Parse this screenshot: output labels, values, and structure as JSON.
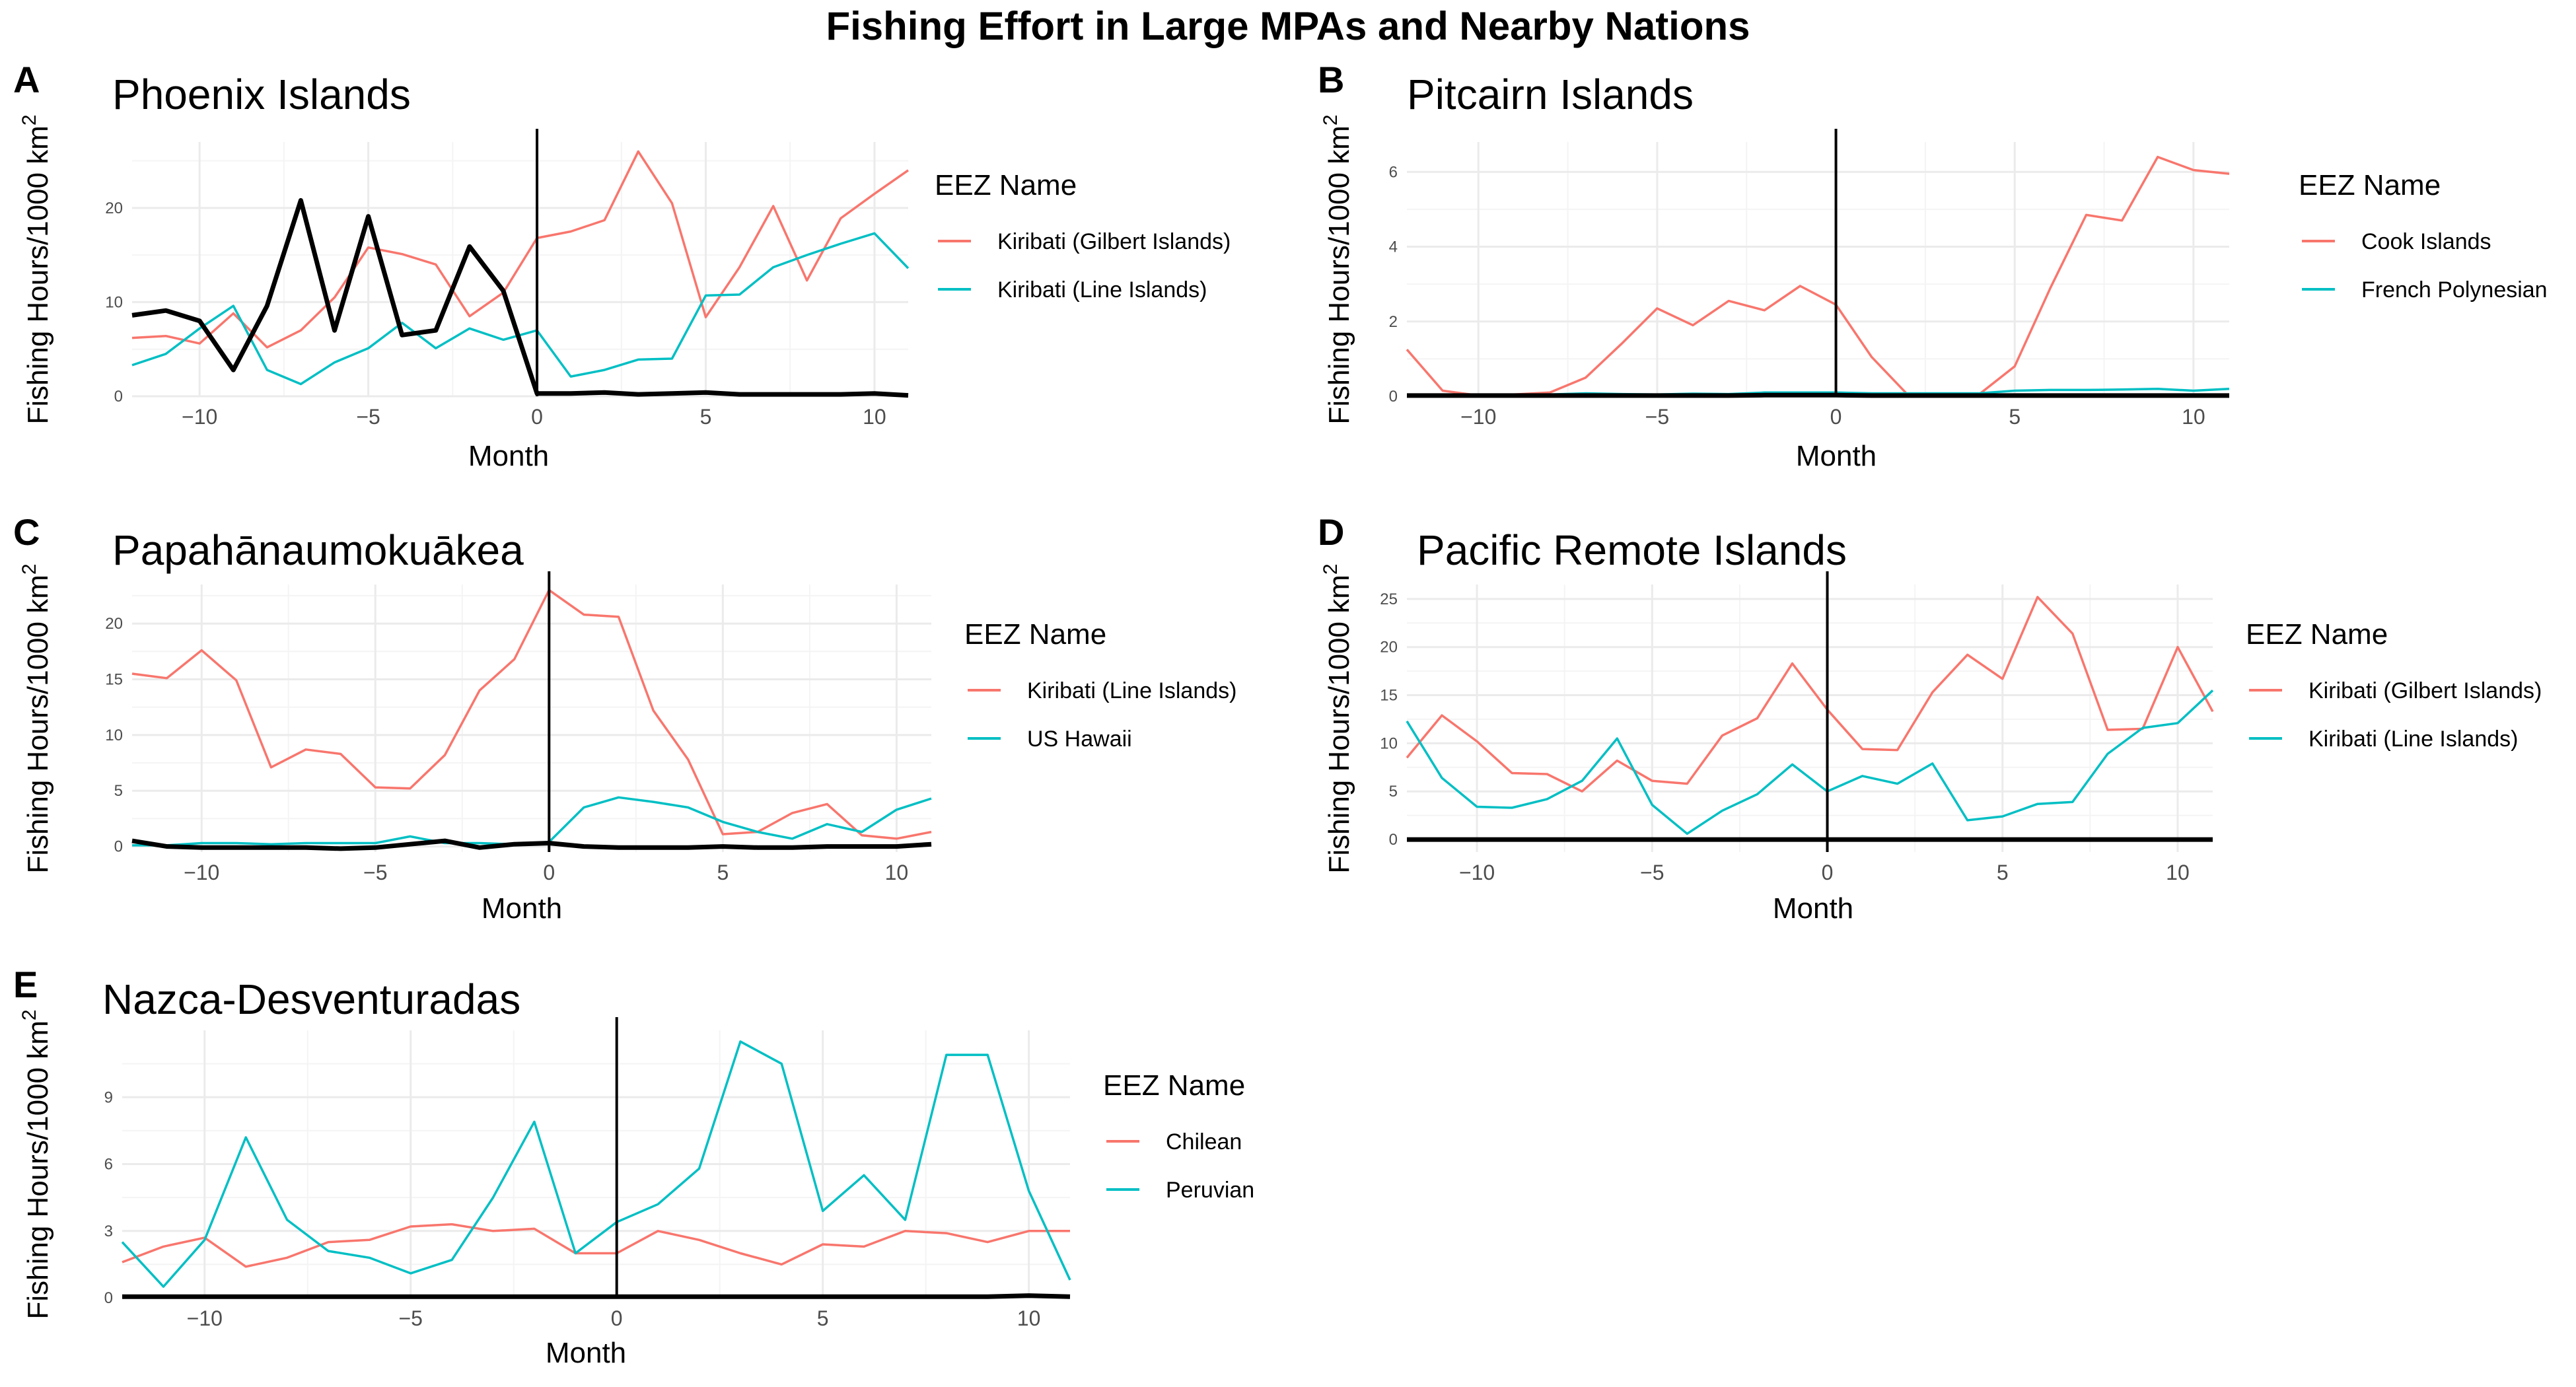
{
  "figure_title": "Fishing Effort in Large MPAs and Nearby Nations",
  "chart_data": [
    {
      "panel": "A",
      "type": "line",
      "title": "Phoenix Islands",
      "xlabel": "Month",
      "ylabel": "Fishing Hours/1000 km",
      "ylabel_sup": "2",
      "xlim": [
        -12,
        11
      ],
      "ylim": [
        0,
        27
      ],
      "x_ticks": [
        -10,
        -5,
        0,
        5,
        10
      ],
      "y_ticks": [
        0,
        10,
        20
      ],
      "vline_x": 0,
      "grid": true,
      "legend_title": "EEZ Name",
      "legend_position": "right",
      "x": [
        -12,
        -11,
        -10,
        -9,
        -8,
        -7,
        -6,
        -5,
        -4,
        -3,
        -2,
        -1,
        0,
        1,
        2,
        3,
        4,
        5,
        6,
        7,
        8,
        9,
        10,
        11
      ],
      "series": [
        {
          "name": "Kiribati (Gilbert Islands)",
          "color": "#F8766D",
          "values": [
            6.2,
            6.4,
            5.6,
            8.8,
            5.2,
            7.0,
            10.5,
            15.8,
            15.1,
            14.0,
            8.5,
            11.0,
            16.8,
            17.5,
            18.7,
            26.0,
            20.5,
            8.4,
            13.7,
            20.2,
            12.3,
            18.9,
            21.5,
            24.0
          ]
        },
        {
          "name": "Kiribati (Line Islands)",
          "color": "#00BFC4",
          "values": [
            3.3,
            4.5,
            7.2,
            9.6,
            2.8,
            1.3,
            3.6,
            5.1,
            7.8,
            5.1,
            7.2,
            6.0,
            7.0,
            2.1,
            2.8,
            3.9,
            4.0,
            10.7,
            10.8,
            13.7,
            15.0,
            16.2,
            17.3,
            13.6
          ]
        },
        {
          "name": "",
          "color": "#000000",
          "values": [
            8.6,
            9.1,
            8.0,
            2.8,
            9.6,
            20.8,
            7.0,
            19.1,
            6.5,
            7.0,
            15.9,
            11.2,
            0.3,
            0.3,
            0.4,
            0.2,
            0.3,
            0.4,
            0.2,
            0.2,
            0.2,
            0.2,
            0.3,
            0.1
          ]
        }
      ]
    },
    {
      "panel": "B",
      "type": "line",
      "title": "Pitcairn Islands",
      "xlabel": "Month",
      "ylabel": "Fishing Hours/1000 km",
      "ylabel_sup": "2",
      "xlim": [
        -12,
        11
      ],
      "ylim": [
        0,
        6.8
      ],
      "x_ticks": [
        -10,
        -5,
        0,
        5,
        10
      ],
      "y_ticks": [
        0,
        2,
        4,
        6
      ],
      "vline_x": 0,
      "grid": true,
      "legend_title": "EEZ Name",
      "legend_position": "right",
      "x": [
        -12,
        -11,
        -10,
        -9,
        -8,
        -7,
        -6,
        -5,
        -4,
        -3,
        -2,
        -1,
        0,
        1,
        2,
        3,
        4,
        5,
        6,
        7,
        8,
        9,
        10,
        11
      ],
      "series": [
        {
          "name": "Cook Islands",
          "color": "#F8766D",
          "values": [
            1.25,
            0.15,
            0.02,
            0.05,
            0.1,
            0.5,
            1.4,
            2.35,
            1.9,
            2.55,
            2.3,
            2.95,
            2.45,
            1.05,
            0.05,
            0.05,
            0.05,
            0.8,
            2.9,
            4.85,
            4.7,
            6.4,
            6.05,
            5.95
          ]
        },
        {
          "name": "French Polynesian",
          "color": "#00BFC4",
          "values": [
            0.0,
            0.0,
            0.02,
            0.03,
            0.05,
            0.08,
            0.06,
            0.05,
            0.07,
            0.06,
            0.1,
            0.1,
            0.1,
            0.08,
            0.08,
            0.08,
            0.08,
            0.15,
            0.17,
            0.17,
            0.18,
            0.2,
            0.15,
            0.2
          ]
        },
        {
          "name": "",
          "color": "#000000",
          "values": [
            0.02,
            0.02,
            0.02,
            0.02,
            0.02,
            0.02,
            0.02,
            0.02,
            0.02,
            0.02,
            0.03,
            0.03,
            0.03,
            0.02,
            0.02,
            0.02,
            0.02,
            0.02,
            0.02,
            0.02,
            0.02,
            0.02,
            0.02,
            0.02
          ]
        }
      ]
    },
    {
      "panel": "C",
      "type": "line",
      "title": "Papahānaumokuākea",
      "xlabel": "Month",
      "ylabel": "Fishing Hours/1000 km",
      "ylabel_sup": "2",
      "xlim": [
        -12,
        11
      ],
      "ylim": [
        -0.5,
        23.5
      ],
      "x_ticks": [
        -10,
        -5,
        0,
        5,
        10
      ],
      "y_ticks": [
        0,
        5,
        10,
        15,
        20
      ],
      "vline_x": 0,
      "grid": true,
      "legend_title": "EEZ Name",
      "legend_position": "right",
      "x": [
        -12,
        -11,
        -10,
        -9,
        -8,
        -7,
        -6,
        -5,
        -4,
        -3,
        -2,
        -1,
        0,
        1,
        2,
        3,
        4,
        5,
        6,
        7,
        8,
        9,
        10,
        11
      ],
      "series": [
        {
          "name": "Kiribati (Line Islands)",
          "color": "#F8766D",
          "values": [
            15.5,
            15.1,
            17.6,
            14.9,
            7.1,
            8.7,
            8.3,
            5.3,
            5.2,
            8.2,
            14.0,
            16.8,
            23.0,
            20.8,
            20.6,
            12.2,
            7.8,
            1.1,
            1.3,
            3.0,
            3.8,
            1.0,
            0.7,
            1.3
          ]
        },
        {
          "name": "US Hawaii",
          "color": "#00BFC4",
          "values": [
            0.1,
            0.1,
            0.3,
            0.3,
            0.2,
            0.3,
            0.3,
            0.3,
            0.9,
            0.3,
            0.3,
            0.2,
            0.4,
            3.5,
            4.4,
            4.0,
            3.5,
            2.2,
            1.3,
            0.7,
            2.0,
            1.3,
            3.3,
            4.3
          ]
        },
        {
          "name": "",
          "color": "#000000",
          "values": [
            0.5,
            0.0,
            -0.1,
            -0.1,
            -0.1,
            -0.1,
            -0.2,
            -0.1,
            0.2,
            0.5,
            -0.1,
            0.2,
            0.3,
            0.0,
            -0.1,
            -0.1,
            -0.1,
            0.0,
            -0.1,
            -0.1,
            0.0,
            0.0,
            0.0,
            0.2
          ]
        }
      ]
    },
    {
      "panel": "D",
      "type": "line",
      "title": "Pacific Remote Islands",
      "xlabel": "Month",
      "ylabel": "Fishing Hours/1000 km",
      "ylabel_sup": "2",
      "xlim": [
        -12,
        11
      ],
      "ylim": [
        -1.3,
        26.5
      ],
      "x_ticks": [
        -10,
        -5,
        0,
        5,
        10
      ],
      "y_ticks": [
        0,
        5,
        10,
        15,
        20,
        25
      ],
      "vline_x": 0,
      "grid": true,
      "legend_title": "EEZ Name",
      "legend_position": "right",
      "x": [
        -12,
        -11,
        -10,
        -9,
        -8,
        -7,
        -6,
        -5,
        -4,
        -3,
        -2,
        -1,
        0,
        1,
        2,
        3,
        4,
        5,
        6,
        7,
        8,
        9,
        10,
        11
      ],
      "series": [
        {
          "name": "Kiribati (Gilbert Islands)",
          "color": "#F8766D",
          "values": [
            8.5,
            12.9,
            10.2,
            6.9,
            6.8,
            5.0,
            8.2,
            6.1,
            5.8,
            10.8,
            12.6,
            18.3,
            13.5,
            9.4,
            9.3,
            15.3,
            19.2,
            16.7,
            25.2,
            21.4,
            11.4,
            11.5,
            20.0,
            13.3
          ]
        },
        {
          "name": "Kiribati (Line Islands)",
          "color": "#00BFC4",
          "values": [
            12.3,
            6.4,
            3.4,
            3.3,
            4.2,
            6.1,
            10.5,
            3.6,
            0.6,
            3.0,
            4.7,
            7.8,
            5.0,
            6.6,
            5.8,
            7.9,
            2.0,
            2.4,
            3.7,
            3.9,
            8.9,
            11.6,
            12.1,
            15.5
          ]
        },
        {
          "name": "",
          "color": "#000000",
          "values": [
            0.0,
            0.0,
            0.0,
            0.0,
            0.0,
            0.0,
            0.0,
            0.0,
            0.0,
            0.0,
            0.0,
            0.0,
            0.0,
            0.0,
            0.0,
            0.0,
            0.0,
            0.0,
            0.0,
            0.0,
            0.0,
            0.0,
            0.0,
            0.0
          ]
        }
      ]
    },
    {
      "panel": "E",
      "type": "line",
      "title": "Nazca-Desventuradas",
      "xlabel": "Month",
      "ylabel": "Fishing Hours/1000 km",
      "ylabel_sup": "2",
      "xlim": [
        -12,
        11
      ],
      "ylim": [
        0,
        12
      ],
      "x_ticks": [
        -10,
        -5,
        0,
        5,
        10
      ],
      "y_ticks": [
        0,
        3,
        6,
        9
      ],
      "vline_x": 0,
      "grid": true,
      "legend_title": "EEZ Name",
      "legend_position": "right",
      "x": [
        -12,
        -11,
        -10,
        -9,
        -8,
        -7,
        -6,
        -5,
        -4,
        -3,
        -2,
        -1,
        0,
        1,
        2,
        3,
        4,
        5,
        6,
        7,
        8,
        9,
        10,
        11
      ],
      "series": [
        {
          "name": "Chilean",
          "color": "#F8766D",
          "values": [
            1.6,
            2.3,
            2.7,
            1.4,
            1.8,
            2.5,
            2.6,
            3.2,
            3.3,
            3.0,
            3.1,
            2.0,
            2.0,
            3.0,
            2.6,
            2.0,
            1.5,
            2.4,
            2.3,
            3.0,
            2.9,
            2.5,
            3.0,
            3.0
          ]
        },
        {
          "name": "Peruvian",
          "color": "#00BFC4",
          "values": [
            2.5,
            0.5,
            2.6,
            7.2,
            3.5,
            2.1,
            1.8,
            1.1,
            1.7,
            4.5,
            7.9,
            2.0,
            3.4,
            4.2,
            5.8,
            11.5,
            10.5,
            3.9,
            5.5,
            3.5,
            10.9,
            10.9,
            4.8,
            0.8
          ]
        },
        {
          "name": "",
          "color": "#000000",
          "values": [
            0.05,
            0.05,
            0.05,
            0.05,
            0.05,
            0.05,
            0.05,
            0.05,
            0.05,
            0.05,
            0.05,
            0.05,
            0.05,
            0.05,
            0.05,
            0.05,
            0.05,
            0.05,
            0.05,
            0.05,
            0.05,
            0.05,
            0.1,
            0.05
          ]
        }
      ]
    }
  ]
}
